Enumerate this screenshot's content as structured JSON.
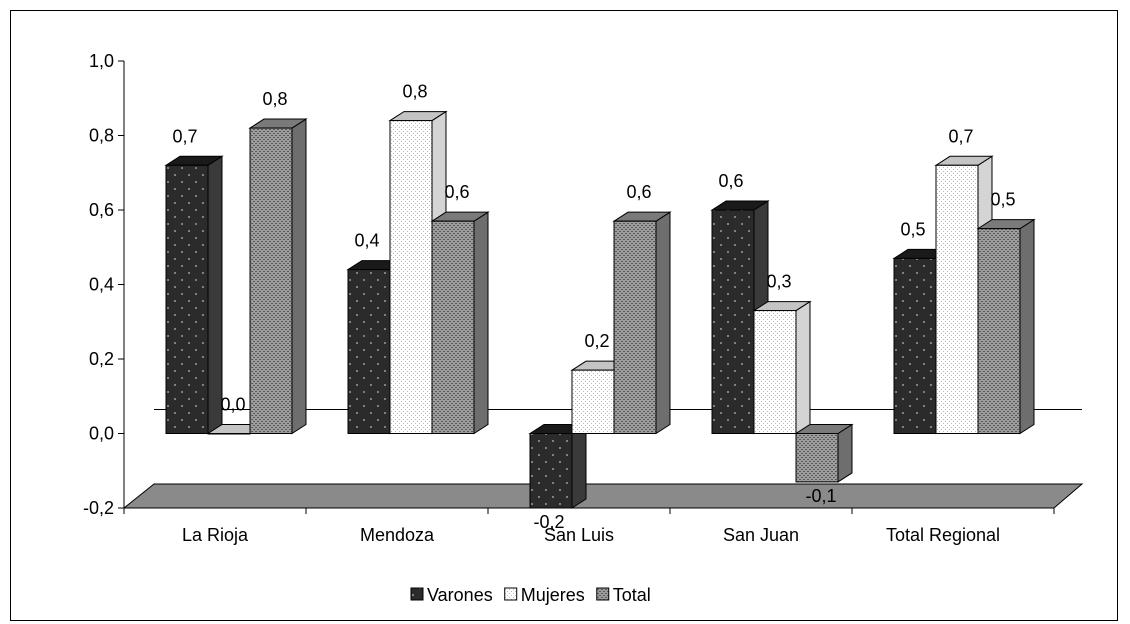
{
  "chart_data": {
    "type": "bar",
    "title": "",
    "xlabel": "",
    "ylabel": "",
    "ylim": [
      -0.2,
      1.0
    ],
    "yticks": [
      -0.2,
      0.0,
      0.2,
      0.4,
      0.6,
      0.8,
      1.0
    ],
    "ytick_labels": [
      "-0,2",
      "0,0",
      "0,2",
      "0,4",
      "0,6",
      "0,8",
      "1,0"
    ],
    "categories": [
      "La Rioja",
      "Mendoza",
      "San Luis",
      "San Juan",
      "Total Regional"
    ],
    "series": [
      {
        "name": "Varones",
        "values": [
          0.72,
          0.44,
          -0.2,
          0.6,
          0.47
        ],
        "labels": [
          "0,7",
          "0,4",
          "-0,2",
          "0,6",
          "0,5"
        ]
      },
      {
        "name": "Mujeres",
        "values": [
          0.0,
          0.84,
          0.17,
          0.33,
          0.72
        ],
        "labels": [
          "0,0",
          "0,8",
          "0,2",
          "0,3",
          "0,7"
        ]
      },
      {
        "name": "Total",
        "values": [
          0.82,
          0.57,
          0.57,
          -0.13,
          0.55
        ],
        "labels": [
          "0,8",
          "0,6",
          "0,6",
          "-0,1",
          "0,5"
        ]
      }
    ],
    "legend_position": "bottom",
    "grid": false,
    "style": "3d-column"
  }
}
